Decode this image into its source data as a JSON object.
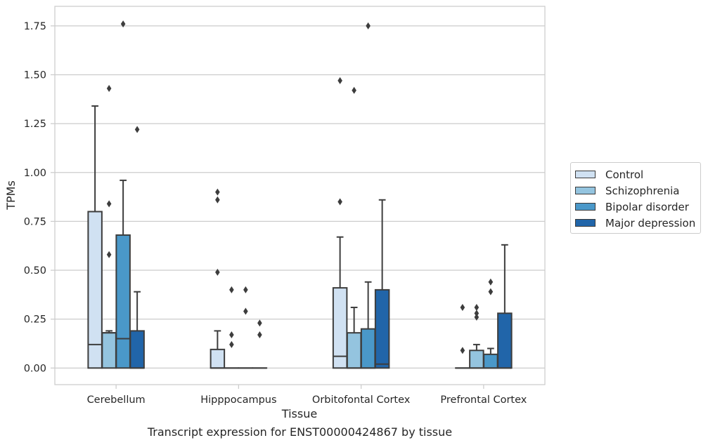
{
  "chart_data": {
    "type": "box",
    "xlabel": "Tissue",
    "ylabel": "TPMs",
    "ylim": [
      -0.085,
      1.85
    ],
    "yticks": [
      0.0,
      0.25,
      0.5,
      0.75,
      1.0,
      1.25,
      1.5,
      1.75
    ],
    "ytick_labels": [
      "0.00",
      "0.25",
      "0.50",
      "0.75",
      "1.00",
      "1.25",
      "1.50",
      "1.75"
    ],
    "grid": "horizontal",
    "legend_position": "right",
    "categories": [
      "Cerebellum",
      "Hipppocampus",
      "Orbitofontal Cortex",
      "Prefrontal Cortex"
    ],
    "series": [
      {
        "name": "Control",
        "color": "#d0e1f2",
        "boxes": [
          {
            "q1": 0.0,
            "median": 0.12,
            "q3": 0.8,
            "whisker_low": 0.0,
            "whisker_high": 1.34,
            "outliers": []
          },
          {
            "q1": 0.0,
            "median": 0.0,
            "q3": 0.095,
            "whisker_low": 0.0,
            "whisker_high": 0.19,
            "outliers": [
              0.9,
              0.86,
              0.49
            ]
          },
          {
            "q1": 0.0,
            "median": 0.06,
            "q3": 0.41,
            "whisker_low": 0.0,
            "whisker_high": 0.67,
            "outliers": [
              1.47,
              0.85
            ]
          },
          {
            "q1": 0.0,
            "median": 0.0,
            "q3": 0.0,
            "whisker_low": 0.0,
            "whisker_high": 0.0,
            "outliers": [
              0.31,
              0.09
            ]
          }
        ]
      },
      {
        "name": "Schizophrenia",
        "color": "#94c4df",
        "boxes": [
          {
            "q1": 0.0,
            "median": 0.18,
            "q3": 0.18,
            "whisker_low": 0.0,
            "whisker_high": 0.19,
            "outliers": [
              1.43,
              0.84,
              0.58
            ]
          },
          {
            "q1": 0.0,
            "median": 0.0,
            "q3": 0.0,
            "whisker_low": 0.0,
            "whisker_high": 0.0,
            "outliers": [
              0.4,
              0.17,
              0.12
            ]
          },
          {
            "q1": 0.0,
            "median": 0.0,
            "q3": 0.18,
            "whisker_low": 0.0,
            "whisker_high": 0.31,
            "outliers": [
              1.42
            ]
          },
          {
            "q1": 0.0,
            "median": 0.0,
            "q3": 0.09,
            "whisker_low": 0.0,
            "whisker_high": 0.12,
            "outliers": [
              0.31,
              0.28,
              0.26
            ]
          }
        ]
      },
      {
        "name": "Bipolar disorder",
        "color": "#4a98c9",
        "boxes": [
          {
            "q1": 0.0,
            "median": 0.15,
            "q3": 0.68,
            "whisker_low": 0.0,
            "whisker_high": 0.96,
            "outliers": [
              1.76
            ]
          },
          {
            "q1": 0.0,
            "median": 0.0,
            "q3": 0.0,
            "whisker_low": 0.0,
            "whisker_high": 0.0,
            "outliers": [
              0.4,
              0.29
            ]
          },
          {
            "q1": 0.0,
            "median": 0.0,
            "q3": 0.2,
            "whisker_low": 0.0,
            "whisker_high": 0.44,
            "outliers": [
              1.75
            ]
          },
          {
            "q1": 0.0,
            "median": 0.0,
            "q3": 0.07,
            "whisker_low": 0.0,
            "whisker_high": 0.1,
            "outliers": [
              0.44,
              0.39
            ]
          }
        ]
      },
      {
        "name": "Major depression",
        "color": "#2165a9",
        "boxes": [
          {
            "q1": 0.0,
            "median": 0.0,
            "q3": 0.19,
            "whisker_low": 0.0,
            "whisker_high": 0.39,
            "outliers": [
              1.22
            ]
          },
          {
            "q1": 0.0,
            "median": 0.0,
            "q3": 0.0,
            "whisker_low": 0.0,
            "whisker_high": 0.0,
            "outliers": [
              0.23,
              0.17
            ]
          },
          {
            "q1": 0.0,
            "median": 0.02,
            "q3": 0.4,
            "whisker_low": 0.0,
            "whisker_high": 0.86,
            "outliers": []
          },
          {
            "q1": 0.0,
            "median": 0.0,
            "q3": 0.28,
            "whisker_low": 0.0,
            "whisker_high": 0.63,
            "outliers": []
          }
        ]
      }
    ]
  },
  "caption": "Transcript expression for ENST00000424867 by tissue"
}
